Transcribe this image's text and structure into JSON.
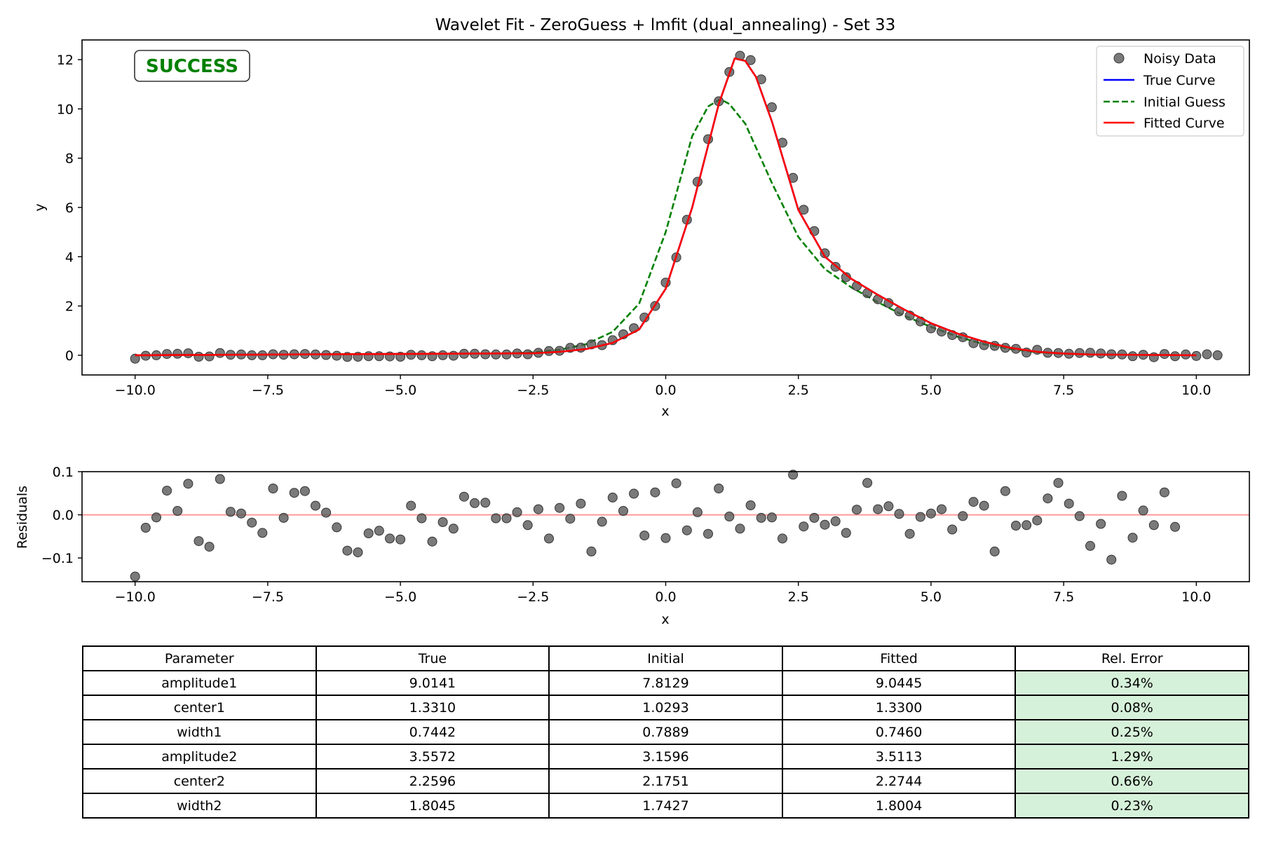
{
  "status_badge": {
    "text": "SUCCESS",
    "color": "#008000"
  },
  "chart_data": [
    {
      "type": "line",
      "title": "Wavelet Fit - ZeroGuess + lmfit (dual_annealing) - Set 33",
      "xlabel": "x",
      "ylabel": "y",
      "xlim": [
        -11,
        11
      ],
      "ylim": [
        -0.8,
        12.8
      ],
      "xticks": [
        -10.0,
        -7.5,
        -5.0,
        -2.5,
        0.0,
        2.5,
        5.0,
        7.5,
        10.0
      ],
      "xtick_labels": [
        "−10.0",
        "−7.5",
        "−5.0",
        "−2.5",
        "0.0",
        "2.5",
        "5.0",
        "7.5",
        "10.0"
      ],
      "yticks": [
        0,
        2,
        4,
        6,
        8,
        10,
        12
      ],
      "ytick_labels": [
        "0",
        "2",
        "4",
        "6",
        "8",
        "10",
        "12"
      ],
      "grid": false,
      "legend_position": "top-right",
      "legend": [
        "Noisy Data",
        "True Curve",
        "Initial Guess",
        "Fitted Curve"
      ],
      "series": [
        {
          "name": "Noisy Data",
          "kind": "scatter",
          "color": "#555555",
          "x_start": -10,
          "x_step": 0.2,
          "y": [
            -0.14,
            -0.02,
            0.0,
            0.05,
            0.06,
            0.08,
            -0.06,
            -0.05,
            0.09,
            0.02,
            0.03,
            0.0,
            0.0,
            0.04,
            0.02,
            0.04,
            0.05,
            0.03,
            0.01,
            -0.02,
            -0.07,
            -0.06,
            -0.04,
            -0.04,
            -0.05,
            -0.06,
            0.02,
            0.0,
            -0.04,
            0.0,
            -0.02,
            0.06,
            0.06,
            0.04,
            0.03,
            0.03,
            0.07,
            0.04,
            0.1,
            0.17,
            0.18,
            0.3,
            0.31,
            0.44,
            0.41,
            0.61,
            0.85,
            1.1,
            1.53,
            2.0,
            2.95,
            3.97,
            5.5,
            7.04,
            8.77,
            10.31,
            11.5,
            12.16,
            11.98,
            11.2,
            10.07,
            8.63,
            7.2,
            5.91,
            5.04,
            4.14,
            3.59,
            3.17,
            2.81,
            2.52,
            2.27,
            2.12,
            1.78,
            1.61,
            1.37,
            1.09,
            0.96,
            0.82,
            0.73,
            0.49,
            0.41,
            0.38,
            0.3,
            0.26,
            0.11,
            0.22,
            0.1,
            0.09,
            0.06,
            0.09,
            0.1,
            0.07,
            0.04,
            0.03,
            -0.04,
            0.02,
            -0.08,
            0.05,
            -0.04,
            0.03,
            -0.03,
            0.04,
            0.0
          ]
        },
        {
          "name": "True Curve",
          "kind": "line",
          "color": "#0000ff",
          "style": "solid",
          "x": [
            -10,
            -2.5,
            -2,
            -1.5,
            -1,
            -0.5,
            0,
            0.5,
            1,
            1.3,
            1.5,
            1.7,
            2,
            2.5,
            3,
            3.5,
            4,
            4.5,
            5,
            5.5,
            6,
            6.5,
            7,
            7.5,
            8,
            10
          ],
          "y": [
            0.0,
            0.08,
            0.14,
            0.25,
            0.5,
            1.05,
            2.7,
            6.0,
            10.2,
            12.05,
            11.95,
            11.3,
            9.5,
            5.9,
            4.0,
            3.1,
            2.45,
            1.85,
            1.3,
            0.88,
            0.55,
            0.3,
            0.14,
            0.07,
            0.03,
            0.0
          ]
        },
        {
          "name": "Initial Guess",
          "kind": "line",
          "color": "#008000",
          "style": "dashed",
          "x": [
            -10,
            -3,
            -2.5,
            -2,
            -1.5,
            -1,
            -0.5,
            0,
            0.5,
            0.8,
            1.03,
            1.2,
            1.5,
            2,
            2.5,
            3,
            3.5,
            4,
            4.5,
            5,
            5.5,
            6,
            6.5,
            7,
            7.5,
            8,
            10
          ],
          "y": [
            0.0,
            0.07,
            0.12,
            0.22,
            0.45,
            0.95,
            2.1,
            5.0,
            8.9,
            10.1,
            10.4,
            10.2,
            9.4,
            7.0,
            4.8,
            3.5,
            2.75,
            2.15,
            1.6,
            1.15,
            0.75,
            0.45,
            0.25,
            0.12,
            0.06,
            0.03,
            0.0
          ]
        },
        {
          "name": "Fitted Curve",
          "kind": "line",
          "color": "#ff0000",
          "style": "solid",
          "x": [
            -10,
            -2.5,
            -2,
            -1.5,
            -1,
            -0.5,
            0,
            0.5,
            1,
            1.3,
            1.5,
            1.7,
            2,
            2.5,
            3,
            3.5,
            4,
            4.5,
            5,
            5.5,
            6,
            6.5,
            7,
            7.5,
            8,
            10
          ],
          "y": [
            0.0,
            0.08,
            0.14,
            0.25,
            0.5,
            1.05,
            2.7,
            6.0,
            10.2,
            12.05,
            11.95,
            11.3,
            9.5,
            5.9,
            4.0,
            3.1,
            2.45,
            1.85,
            1.3,
            0.88,
            0.55,
            0.3,
            0.14,
            0.07,
            0.03,
            0.0
          ]
        }
      ]
    },
    {
      "type": "scatter",
      "title": "",
      "xlabel": "x",
      "ylabel": "Residuals",
      "xlim": [
        -11,
        11
      ],
      "ylim": [
        -0.155,
        0.1
      ],
      "xticks": [
        -10.0,
        -7.5,
        -5.0,
        -2.5,
        0.0,
        2.5,
        5.0,
        7.5,
        10.0
      ],
      "xtick_labels": [
        "−10.0",
        "−7.5",
        "−5.0",
        "−2.5",
        "0.0",
        "2.5",
        "5.0",
        "7.5",
        "10.0"
      ],
      "yticks": [
        0.1,
        0.0,
        -0.1
      ],
      "ytick_labels": [
        "0.1",
        "0.0",
        "−0.1"
      ],
      "grid": false,
      "reference_line": {
        "y": 0,
        "color": "#ff9999"
      },
      "series": [
        {
          "name": "Residuals",
          "kind": "scatter",
          "color": "#555555",
          "x_start": -10,
          "x_step": 0.2,
          "y": [
            -0.143,
            -0.03,
            -0.006,
            0.056,
            0.009,
            0.072,
            -0.061,
            -0.074,
            0.083,
            0.007,
            0.003,
            -0.018,
            -0.042,
            0.061,
            -0.007,
            0.051,
            0.055,
            0.021,
            0.005,
            -0.029,
            -0.083,
            -0.087,
            -0.043,
            -0.037,
            -0.055,
            -0.057,
            0.021,
            -0.008,
            -0.062,
            -0.017,
            -0.032,
            0.042,
            0.027,
            0.028,
            -0.008,
            -0.008,
            0.006,
            -0.024,
            0.013,
            -0.055,
            0.016,
            -0.009,
            0.026,
            -0.085,
            -0.016,
            0.04,
            0.009,
            0.049,
            -0.048,
            0.052,
            -0.054,
            0.073,
            -0.036,
            0.006,
            -0.044,
            0.061,
            -0.004,
            -0.032,
            0.022,
            -0.007,
            -0.006,
            -0.055,
            0.093,
            -0.027,
            -0.007,
            -0.023,
            -0.015,
            -0.042,
            0.012,
            0.074,
            0.013,
            0.02,
            0.002,
            -0.044,
            -0.005,
            0.003,
            0.013,
            -0.034,
            -0.003,
            0.03,
            0.021,
            -0.085,
            0.055,
            -0.025,
            -0.024,
            -0.013,
            0.038,
            0.074,
            0.026,
            -0.003,
            -0.072,
            -0.021,
            -0.104,
            0.044,
            -0.053,
            0.01,
            -0.024,
            0.052,
            -0.028
          ]
        }
      ]
    },
    {
      "type": "table",
      "columns": [
        "Parameter",
        "True",
        "Initial",
        "Fitted",
        "Rel. Error"
      ],
      "rows": [
        [
          "amplitude1",
          "9.0141",
          "7.8129",
          "9.0445",
          "0.34%"
        ],
        [
          "center1",
          "1.3310",
          "1.0293",
          "1.3300",
          "0.08%"
        ],
        [
          "width1",
          "0.7442",
          "0.7889",
          "0.7460",
          "0.25%"
        ],
        [
          "amplitude2",
          "3.5572",
          "3.1596",
          "3.5113",
          "1.29%"
        ],
        [
          "center2",
          "2.2596",
          "2.1751",
          "2.2744",
          "0.66%"
        ],
        [
          "width2",
          "1.8045",
          "1.7427",
          "1.8004",
          "0.23%"
        ]
      ],
      "error_cell_color": "#d6f1d9"
    }
  ]
}
